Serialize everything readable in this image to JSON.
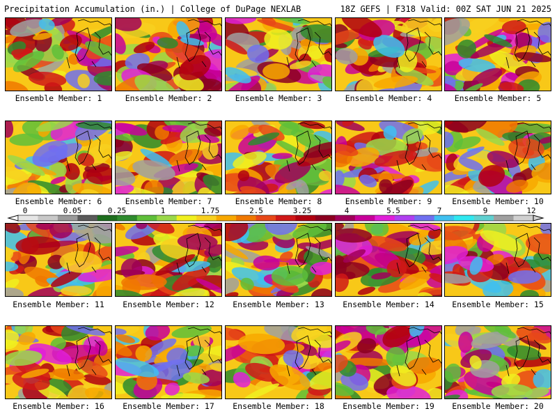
{
  "header": {
    "left": "Precipitation Accumulation (in.) | College of DuPage NEXLAB",
    "right": "18Z GEFS | F318 Valid: 00Z SAT JUN 21 2025"
  },
  "panels": [
    {
      "label": "Ensemble Member: 1"
    },
    {
      "label": "Ensemble Member: 2"
    },
    {
      "label": "Ensemble Member: 3"
    },
    {
      "label": "Ensemble Member: 4"
    },
    {
      "label": "Ensemble Member: 5"
    },
    {
      "label": "Ensemble Member: 6"
    },
    {
      "label": "Ensemble Member: 7"
    },
    {
      "label": "Ensemble Member: 8"
    },
    {
      "label": "Ensemble Member: 9"
    },
    {
      "label": "Ensemble Member: 10"
    },
    {
      "label": "Ensemble Member: 11"
    },
    {
      "label": "Ensemble Member: 12"
    },
    {
      "label": "Ensemble Member: 13"
    },
    {
      "label": "Ensemble Member: 14"
    },
    {
      "label": "Ensemble Member: 15"
    },
    {
      "label": "Ensemble Member: 16"
    },
    {
      "label": "Ensemble Member: 17"
    },
    {
      "label": "Ensemble Member: 18"
    },
    {
      "label": "Ensemble Member: 19"
    },
    {
      "label": "Ensemble Member: 20"
    }
  ],
  "colorbar": {
    "ticks": [
      "0",
      "0.05",
      "0.25",
      "1",
      "1.75",
      "2.5",
      "3.25",
      "4",
      "5.5",
      "7",
      "9",
      "12"
    ],
    "colors": [
      "#e6e6e6",
      "#c8c8c8",
      "#9a9a9a",
      "#5a5a5a",
      "#1e6e1e",
      "#2e8b2e",
      "#5fbf3a",
      "#9ad84a",
      "#f0f020",
      "#f8d020",
      "#f8a800",
      "#f07800",
      "#e84818",
      "#d01818",
      "#b00010",
      "#8c0020",
      "#a0005a",
      "#c8009a",
      "#e020d8",
      "#b040f0",
      "#7070f0",
      "#40c0f0",
      "#30e8f0",
      "#60d0d0",
      "#a0a0a0",
      "#d0d0d0"
    ]
  }
}
